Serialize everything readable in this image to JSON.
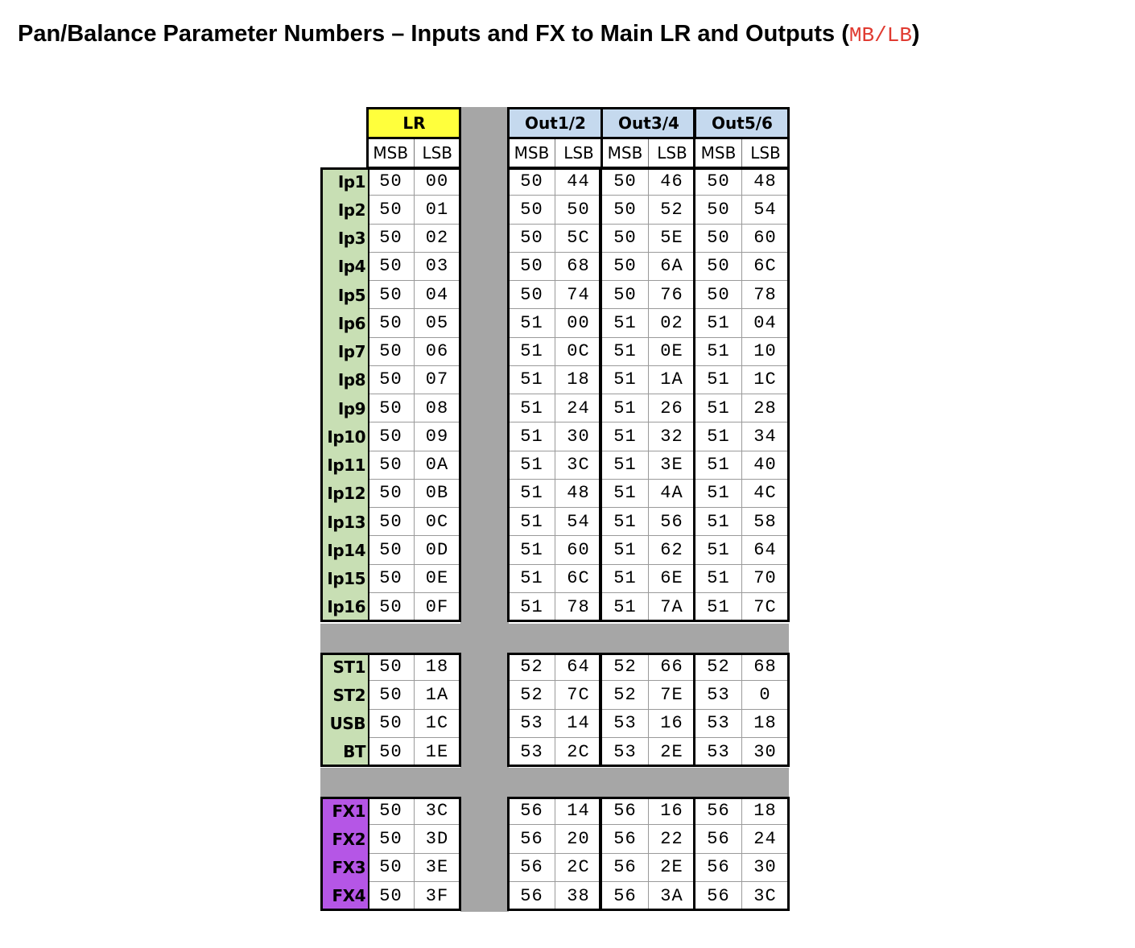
{
  "title": {
    "text": "Pan/Balance Parameter Numbers – Inputs and FX to Main LR and Outputs (",
    "code": "MB/LB",
    "close": ")"
  },
  "colors": {
    "lr_header": "#ffff3c",
    "out_header": "#c5d9ee",
    "input_label": "#c8dfb4",
    "fx_label": "#b556e6",
    "separator": "#a6a6a6"
  },
  "groups": [
    {
      "name": "LR",
      "sub": [
        "MSB",
        "LSB"
      ]
    },
    {
      "name": "Out1/2",
      "sub": [
        "MSB",
        "LSB"
      ]
    },
    {
      "name": "Out3/4",
      "sub": [
        "MSB",
        "LSB"
      ]
    },
    {
      "name": "Out5/6",
      "sub": [
        "MSB",
        "LSB"
      ]
    }
  ],
  "sections": [
    {
      "id": "inputs",
      "rows": [
        {
          "label": "Ip1",
          "values": [
            "50",
            "00",
            "50",
            "44",
            "50",
            "46",
            "50",
            "48"
          ]
        },
        {
          "label": "Ip2",
          "values": [
            "50",
            "01",
            "50",
            "50",
            "50",
            "52",
            "50",
            "54"
          ]
        },
        {
          "label": "Ip3",
          "values": [
            "50",
            "02",
            "50",
            "5C",
            "50",
            "5E",
            "50",
            "60"
          ]
        },
        {
          "label": "Ip4",
          "values": [
            "50",
            "03",
            "50",
            "68",
            "50",
            "6A",
            "50",
            "6C"
          ]
        },
        {
          "label": "Ip5",
          "values": [
            "50",
            "04",
            "50",
            "74",
            "50",
            "76",
            "50",
            "78"
          ]
        },
        {
          "label": "Ip6",
          "values": [
            "50",
            "05",
            "51",
            "00",
            "51",
            "02",
            "51",
            "04"
          ]
        },
        {
          "label": "Ip7",
          "values": [
            "50",
            "06",
            "51",
            "0C",
            "51",
            "0E",
            "51",
            "10"
          ]
        },
        {
          "label": "Ip8",
          "values": [
            "50",
            "07",
            "51",
            "18",
            "51",
            "1A",
            "51",
            "1C"
          ]
        },
        {
          "label": "Ip9",
          "values": [
            "50",
            "08",
            "51",
            "24",
            "51",
            "26",
            "51",
            "28"
          ]
        },
        {
          "label": "Ip10",
          "values": [
            "50",
            "09",
            "51",
            "30",
            "51",
            "32",
            "51",
            "34"
          ]
        },
        {
          "label": "Ip11",
          "values": [
            "50",
            "0A",
            "51",
            "3C",
            "51",
            "3E",
            "51",
            "40"
          ]
        },
        {
          "label": "Ip12",
          "values": [
            "50",
            "0B",
            "51",
            "48",
            "51",
            "4A",
            "51",
            "4C"
          ]
        },
        {
          "label": "Ip13",
          "values": [
            "50",
            "0C",
            "51",
            "54",
            "51",
            "56",
            "51",
            "58"
          ]
        },
        {
          "label": "Ip14",
          "values": [
            "50",
            "0D",
            "51",
            "60",
            "51",
            "62",
            "51",
            "64"
          ]
        },
        {
          "label": "Ip15",
          "values": [
            "50",
            "0E",
            "51",
            "6C",
            "51",
            "6E",
            "51",
            "70"
          ]
        },
        {
          "label": "Ip16",
          "values": [
            "50",
            "0F",
            "51",
            "78",
            "51",
            "7A",
            "51",
            "7C"
          ]
        }
      ]
    },
    {
      "id": "stereo",
      "rows": [
        {
          "label": "ST1",
          "values": [
            "50",
            "18",
            "52",
            "64",
            "52",
            "66",
            "52",
            "68"
          ]
        },
        {
          "label": "ST2",
          "values": [
            "50",
            "1A",
            "52",
            "7C",
            "52",
            "7E",
            "53",
            "0"
          ]
        },
        {
          "label": "USB",
          "values": [
            "50",
            "1C",
            "53",
            "14",
            "53",
            "16",
            "53",
            "18"
          ]
        },
        {
          "label": "BT",
          "values": [
            "50",
            "1E",
            "53",
            "2C",
            "53",
            "2E",
            "53",
            "30"
          ]
        }
      ]
    },
    {
      "id": "fx",
      "rows": [
        {
          "label": "FX1",
          "values": [
            "50",
            "3C",
            "56",
            "14",
            "56",
            "16",
            "56",
            "18"
          ]
        },
        {
          "label": "FX2",
          "values": [
            "50",
            "3D",
            "56",
            "20",
            "56",
            "22",
            "56",
            "24"
          ]
        },
        {
          "label": "FX3",
          "values": [
            "50",
            "3E",
            "56",
            "2C",
            "56",
            "2E",
            "56",
            "30"
          ]
        },
        {
          "label": "FX4",
          "values": [
            "50",
            "3F",
            "56",
            "38",
            "56",
            "3A",
            "56",
            "3C"
          ]
        }
      ]
    }
  ]
}
